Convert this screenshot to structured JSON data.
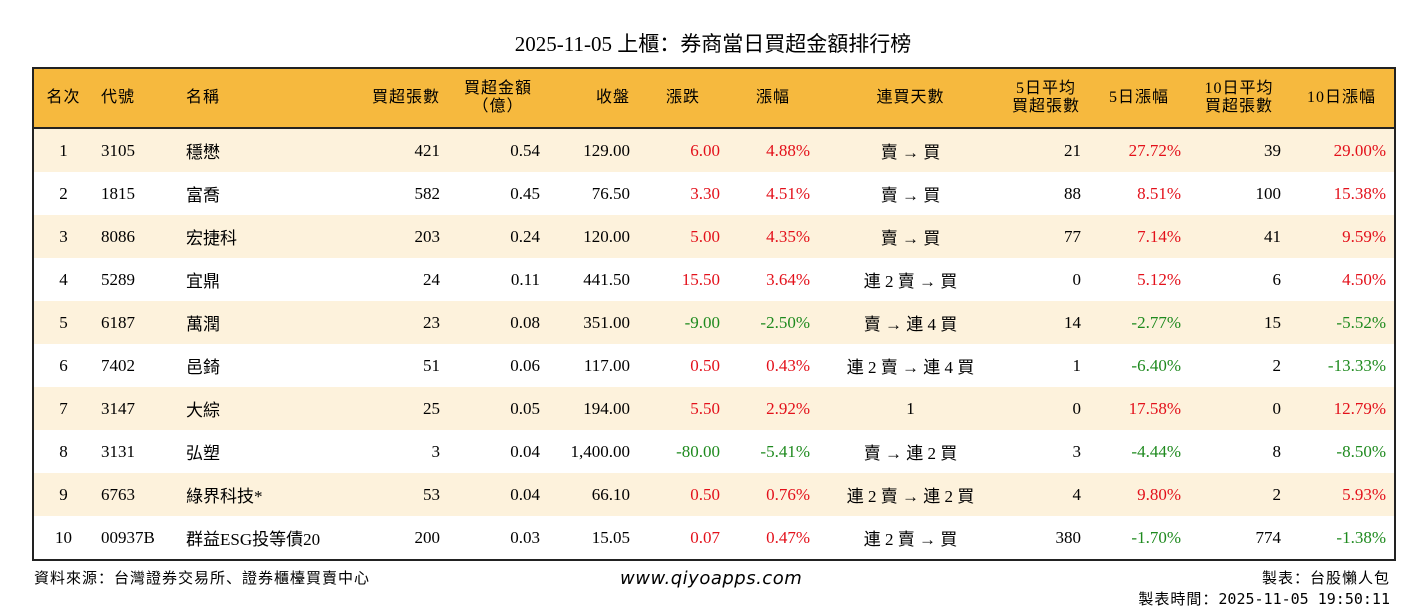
{
  "header": {
    "title": "2025-11-05 上櫃：券商當日買超金額排行榜"
  },
  "table": {
    "columns": [
      [
        "名次"
      ],
      [
        "代號"
      ],
      [
        "名稱"
      ],
      [
        "買超張數"
      ],
      [
        "買超金額",
        "（億）"
      ],
      [
        "收盤"
      ],
      [
        "漲跌"
      ],
      [
        "漲幅"
      ],
      [
        "連買天數"
      ],
      [
        "5日平均",
        "買超張數"
      ],
      [
        "5日漲幅"
      ],
      [
        "10日平均",
        "買超張數"
      ],
      [
        "10日漲幅"
      ]
    ],
    "rows": [
      [
        "1",
        "3105",
        "穩懋",
        "421",
        "0.54",
        "129.00",
        "6.00",
        "4.88%",
        "賣 → 買",
        "21",
        "27.72%",
        "39",
        "29.00%"
      ],
      [
        "2",
        "1815",
        "富喬",
        "582",
        "0.45",
        "76.50",
        "3.30",
        "4.51%",
        "賣 → 買",
        "88",
        "8.51%",
        "100",
        "15.38%"
      ],
      [
        "3",
        "8086",
        "宏捷科",
        "203",
        "0.24",
        "120.00",
        "5.00",
        "4.35%",
        "賣 → 買",
        "77",
        "7.14%",
        "41",
        "9.59%"
      ],
      [
        "4",
        "5289",
        "宜鼎",
        "24",
        "0.11",
        "441.50",
        "15.50",
        "3.64%",
        "連 2 賣 → 買",
        "0",
        "5.12%",
        "6",
        "4.50%"
      ],
      [
        "5",
        "6187",
        "萬潤",
        "23",
        "0.08",
        "351.00",
        "-9.00",
        "-2.50%",
        "賣 → 連 4 買",
        "14",
        "-2.77%",
        "15",
        "-5.52%"
      ],
      [
        "6",
        "7402",
        "邑錡",
        "51",
        "0.06",
        "117.00",
        "0.50",
        "0.43%",
        "連 2 賣 → 連 4 買",
        "1",
        "-6.40%",
        "2",
        "-13.33%"
      ],
      [
        "7",
        "3147",
        "大綜",
        "25",
        "0.05",
        "194.00",
        "5.50",
        "2.92%",
        "1",
        "0",
        "17.58%",
        "0",
        "12.79%"
      ],
      [
        "8",
        "3131",
        "弘塑",
        "3",
        "0.04",
        "1,400.00",
        "-80.00",
        "-5.41%",
        "賣 → 連 2 買",
        "3",
        "-4.44%",
        "8",
        "-8.50%"
      ],
      [
        "9",
        "6763",
        "綠界科技*",
        "53",
        "0.04",
        "66.10",
        "0.50",
        "0.76%",
        "連 2 賣 → 連 2 買",
        "4",
        "9.80%",
        "2",
        "5.93%"
      ],
      [
        "10",
        "00937B",
        "群益ESG投等債20",
        "200",
        "0.03",
        "15.05",
        "0.07",
        "0.47%",
        "連 2 賣 → 買",
        "380",
        "-1.70%",
        "774",
        "-1.38%"
      ]
    ]
  },
  "footer": {
    "source": "資料來源：台灣證券交易所、證券櫃檯買賣中心",
    "site": "www.qiyoapps.com",
    "maker": "製表：台股懶人包",
    "time_label": "製表時間：",
    "time": "2025-11-05 19:50:11"
  }
}
